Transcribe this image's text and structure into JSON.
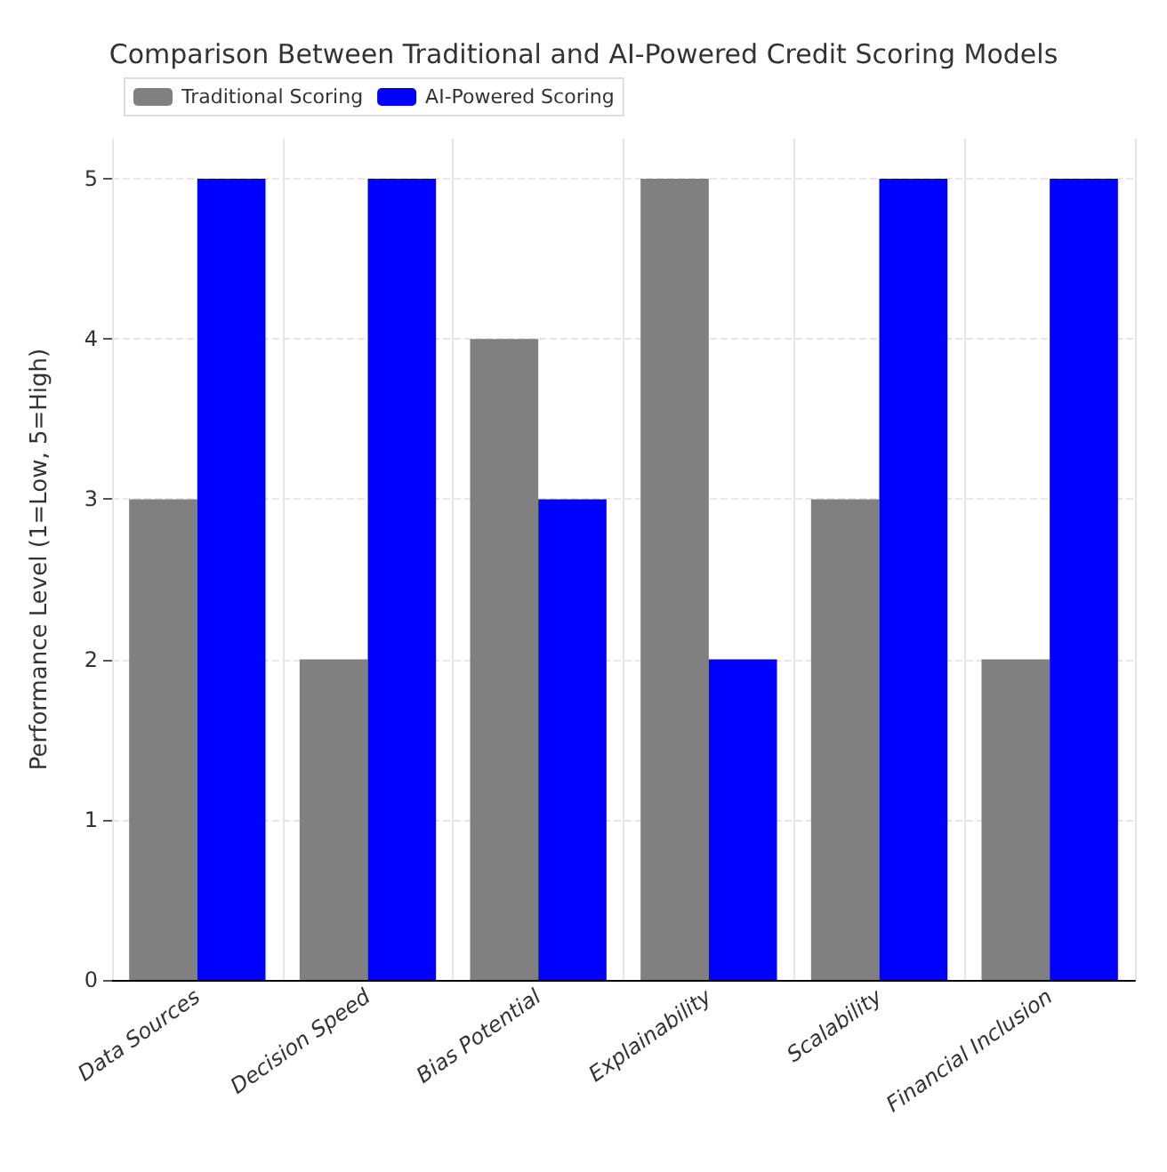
{
  "chart_data": {
    "type": "bar",
    "title": "Comparison Between Traditional and AI-Powered Credit Scoring Models",
    "ylabel": "Performance Level (1=Low, 5=High)",
    "categories": [
      "Data Sources",
      "Decision Speed",
      "Bias Potential",
      "Explainability",
      "Scalability",
      "Financial Inclusion"
    ],
    "series": [
      {
        "name": "Traditional Scoring",
        "color": "#808080",
        "values": [
          3,
          2,
          4,
          5,
          3,
          2
        ]
      },
      {
        "name": "AI-Powered Scoring",
        "color": "#0000ff",
        "values": [
          5,
          5,
          3,
          2,
          5,
          5
        ]
      }
    ],
    "ylim": [
      0,
      5.25
    ],
    "yticks": [
      0,
      1,
      2,
      3,
      4,
      5
    ],
    "grid": true,
    "legend": "top left"
  }
}
